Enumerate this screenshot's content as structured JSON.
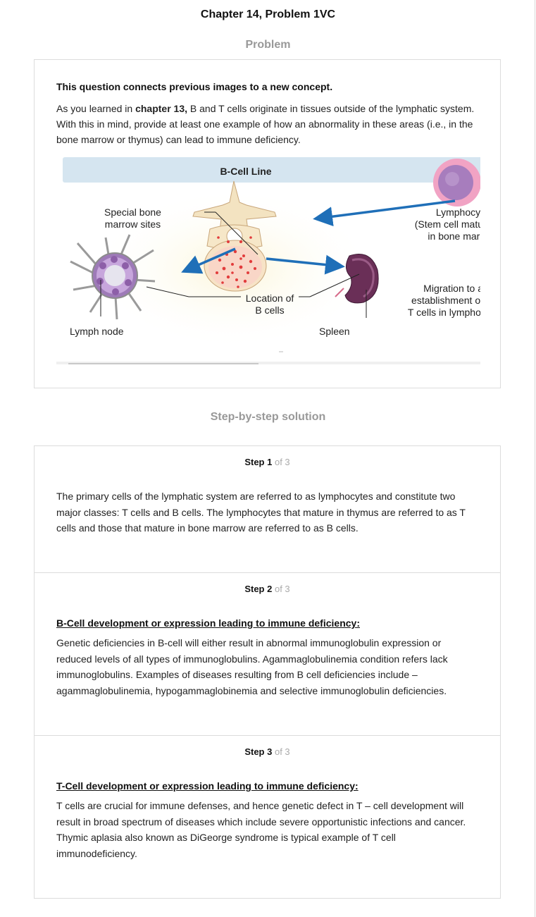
{
  "page": {
    "title": "Chapter 14, Problem 1VC",
    "problem_heading": "Problem",
    "solution_heading": "Step-by-step solution"
  },
  "problem": {
    "lead": "This question connects previous images to a new concept.",
    "text_before": "As you learned in ",
    "text_bold": "chapter 13,",
    "text_after": " B and T cells originate in tissues outside of the lymphatic system. With this in mind, provide at least one example of how an abnormality in these areas (i.e., in the bone marrow or thymus) can lead to immune deficiency."
  },
  "figure": {
    "header": "B-Cell Line",
    "special_bone_1": "Special bone",
    "special_bone_2": "marrow sites",
    "lymphocyte_1": "Lymphocyt",
    "lymphocyte_2": "(Stem cell matu",
    "lymphocyte_3": "in bone marr",
    "migration_1": "Migration to a",
    "migration_2": "establishment of",
    "migration_3": "T cells in lymphoi",
    "location_1": "Location of",
    "location_2": "B cells",
    "lymph_node": "Lymph node",
    "spleen": "Spleen",
    "scroll_left": "‹",
    "scroll_right": "›",
    "colors": {
      "header_bg": "#d5e5f0",
      "arrow": "#1f6fb8",
      "marrow_red": "#e23c3c",
      "spleen": "#5b2a4e",
      "lymphocyte": "#e9a3c9"
    }
  },
  "steps": [
    {
      "label": "Step 1",
      "of": "of 3",
      "heading": "",
      "body": "The primary cells of the lymphatic system are referred to as lymphocytes and constitute two major classes: T cells and B cells. The lymphocytes that mature in thymus are referred to as T cells and those that mature in bone marrow are referred to as B cells."
    },
    {
      "label": "Step 2",
      "of": "of 3",
      "heading": "B-Cell development or expression leading to immune deficiency:",
      "body": "Genetic deficiencies in B-cell will either result in abnormal immunoglobulin expression or reduced levels of all types of immunoglobulins. Agammaglobulinemia condition refers lack immunoglobulins. Examples of diseases resulting from B cell deficiencies include – agammaglobulinemia, hypogammaglobinemia and selective immunoglobulin deficiencies."
    },
    {
      "label": "Step 3",
      "of": "of 3",
      "heading": "T-Cell development or expression leading to immune deficiency:",
      "body": "T cells are crucial for immune defenses, and hence genetic defect in T – cell development will result in broad spectrum of diseases which include severe opportunistic infections and cancer. Thymic aplasia also known as DiGeorge syndrome is typical example of T cell immunodeficiency."
    }
  ]
}
